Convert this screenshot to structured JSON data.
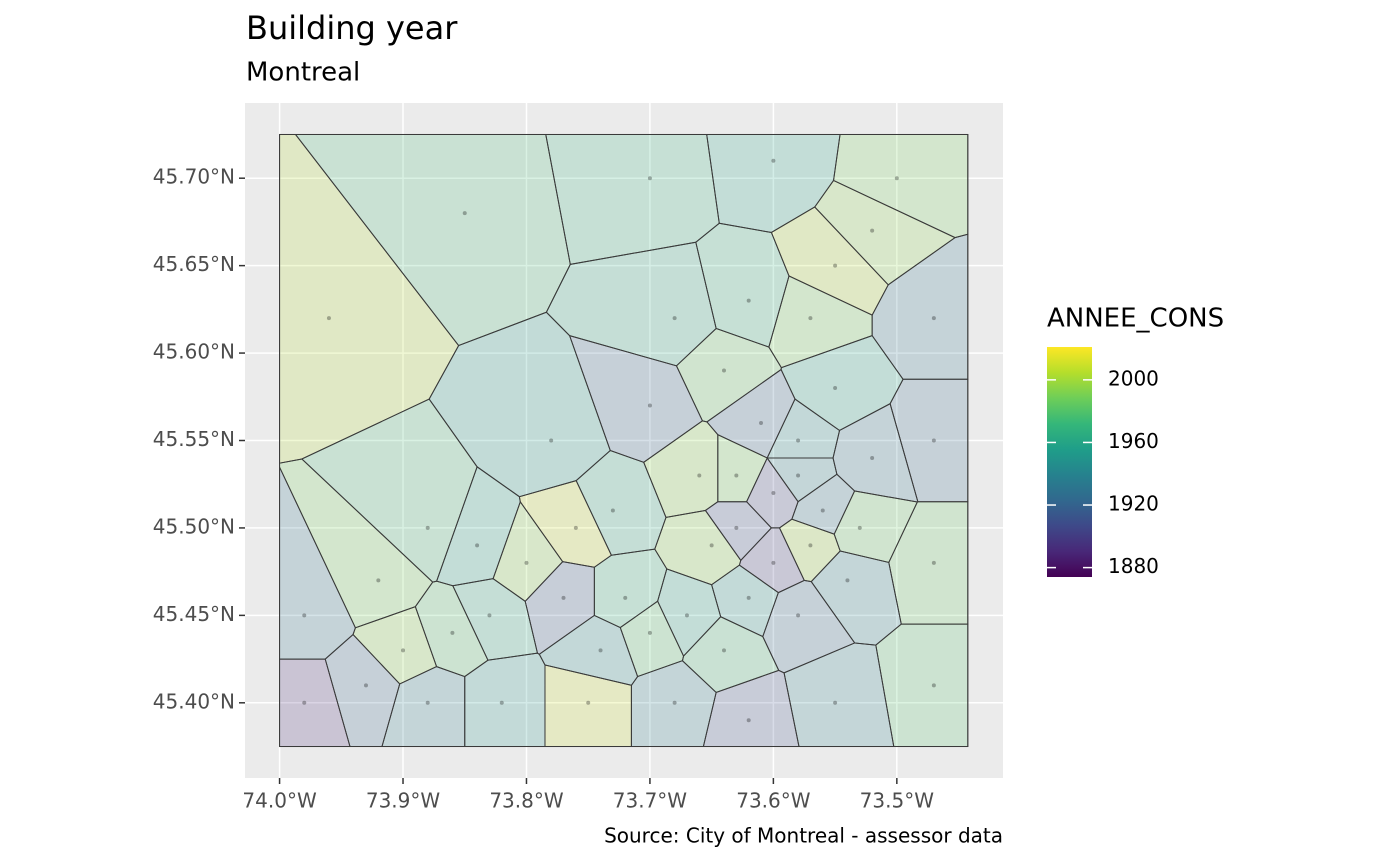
{
  "chart_data": {
    "type": "map",
    "title": "Building year",
    "subtitle": "Montreal",
    "caption": "Source: City of Montreal - assessor data",
    "xlim": [
      -74.028,
      -73.414
    ],
    "ylim": [
      45.357,
      45.743
    ],
    "xticks": [
      {
        "value": -74.0,
        "label": "74.0°W"
      },
      {
        "value": -73.9,
        "label": "73.9°W"
      },
      {
        "value": -73.8,
        "label": "73.8°W"
      },
      {
        "value": -73.7,
        "label": "73.7°W"
      },
      {
        "value": -73.6,
        "label": "73.6°W"
      },
      {
        "value": -73.5,
        "label": "73.5°W"
      }
    ],
    "yticks": [
      {
        "value": 45.4,
        "label": "45.40°N"
      },
      {
        "value": 45.45,
        "label": "45.45°N"
      },
      {
        "value": 45.5,
        "label": "45.50°N"
      },
      {
        "value": 45.55,
        "label": "45.55°N"
      },
      {
        "value": 45.6,
        "label": "45.60°N"
      },
      {
        "value": 45.65,
        "label": "45.65°N"
      },
      {
        "value": 45.7,
        "label": "45.70°N"
      }
    ],
    "grid": true,
    "extent": {
      "xlim": [
        -74.0,
        -73.4425
      ],
      "ylim": [
        45.375,
        45.725
      ]
    },
    "legend": {
      "title": "ANNEE_CONS",
      "colormap": "viridis",
      "limits": [
        1874,
        2021
      ],
      "ticks": [
        1880,
        1920,
        1960,
        2000
      ]
    },
    "buildings": {
      "lon": [
        -73.96,
        -73.85,
        -73.7,
        -73.6,
        -73.5,
        -73.47,
        -73.47,
        -73.47,
        -73.47,
        -73.55,
        -73.62,
        -73.68,
        -73.75,
        -73.82,
        -73.88,
        -73.93,
        -73.98,
        -73.98,
        -73.92,
        -73.88,
        -73.84,
        -73.8,
        -73.76,
        -73.77,
        -73.72,
        -73.73,
        -73.78,
        -73.7,
        -73.66,
        -73.64,
        -73.68,
        -73.62,
        -73.57,
        -73.55,
        -73.52,
        -73.55,
        -73.52,
        -73.58,
        -73.61,
        -73.63,
        -73.6,
        -73.56,
        -73.57,
        -73.6,
        -73.62,
        -73.65,
        -73.67,
        -73.7,
        -73.64,
        -73.58,
        -73.54,
        -73.53,
        -73.63,
        -73.58,
        -73.83,
        -73.86,
        -73.9,
        -73.74
      ],
      "lat": [
        45.62,
        45.68,
        45.7,
        45.71,
        45.7,
        45.62,
        45.55,
        45.48,
        45.41,
        45.4,
        45.39,
        45.4,
        45.4,
        45.4,
        45.4,
        45.41,
        45.4,
        45.45,
        45.47,
        45.5,
        45.49,
        45.48,
        45.5,
        45.46,
        45.46,
        45.51,
        45.55,
        45.57,
        45.53,
        45.59,
        45.62,
        45.63,
        45.62,
        45.65,
        45.67,
        45.58,
        45.54,
        45.55,
        45.56,
        45.53,
        45.52,
        45.51,
        45.49,
        45.48,
        45.46,
        45.49,
        45.45,
        45.44,
        45.43,
        45.45,
        45.47,
        45.5,
        45.5,
        45.53,
        45.45,
        45.44,
        45.43,
        45.43
      ],
      "year": [
        2005,
        1975,
        1970,
        1960,
        1990,
        1930,
        1925,
        1985,
        1980,
        1940,
        1910,
        1935,
        2010,
        1950,
        1935,
        1920,
        1890,
        1930,
        1990,
        1975,
        1960,
        1995,
        2010,
        1915,
        1970,
        1965,
        1955,
        1920,
        1995,
        1985,
        1965,
        1970,
        1990,
        2005,
        1995,
        1960,
        1930,
        1945,
        1920,
        1990,
        1905,
        1930,
        2000,
        1900,
        1950,
        1995,
        1960,
        1980,
        1975,
        1925,
        1940,
        1985,
        1910,
        1940,
        1965,
        1980,
        1995,
        1945
      ]
    }
  }
}
